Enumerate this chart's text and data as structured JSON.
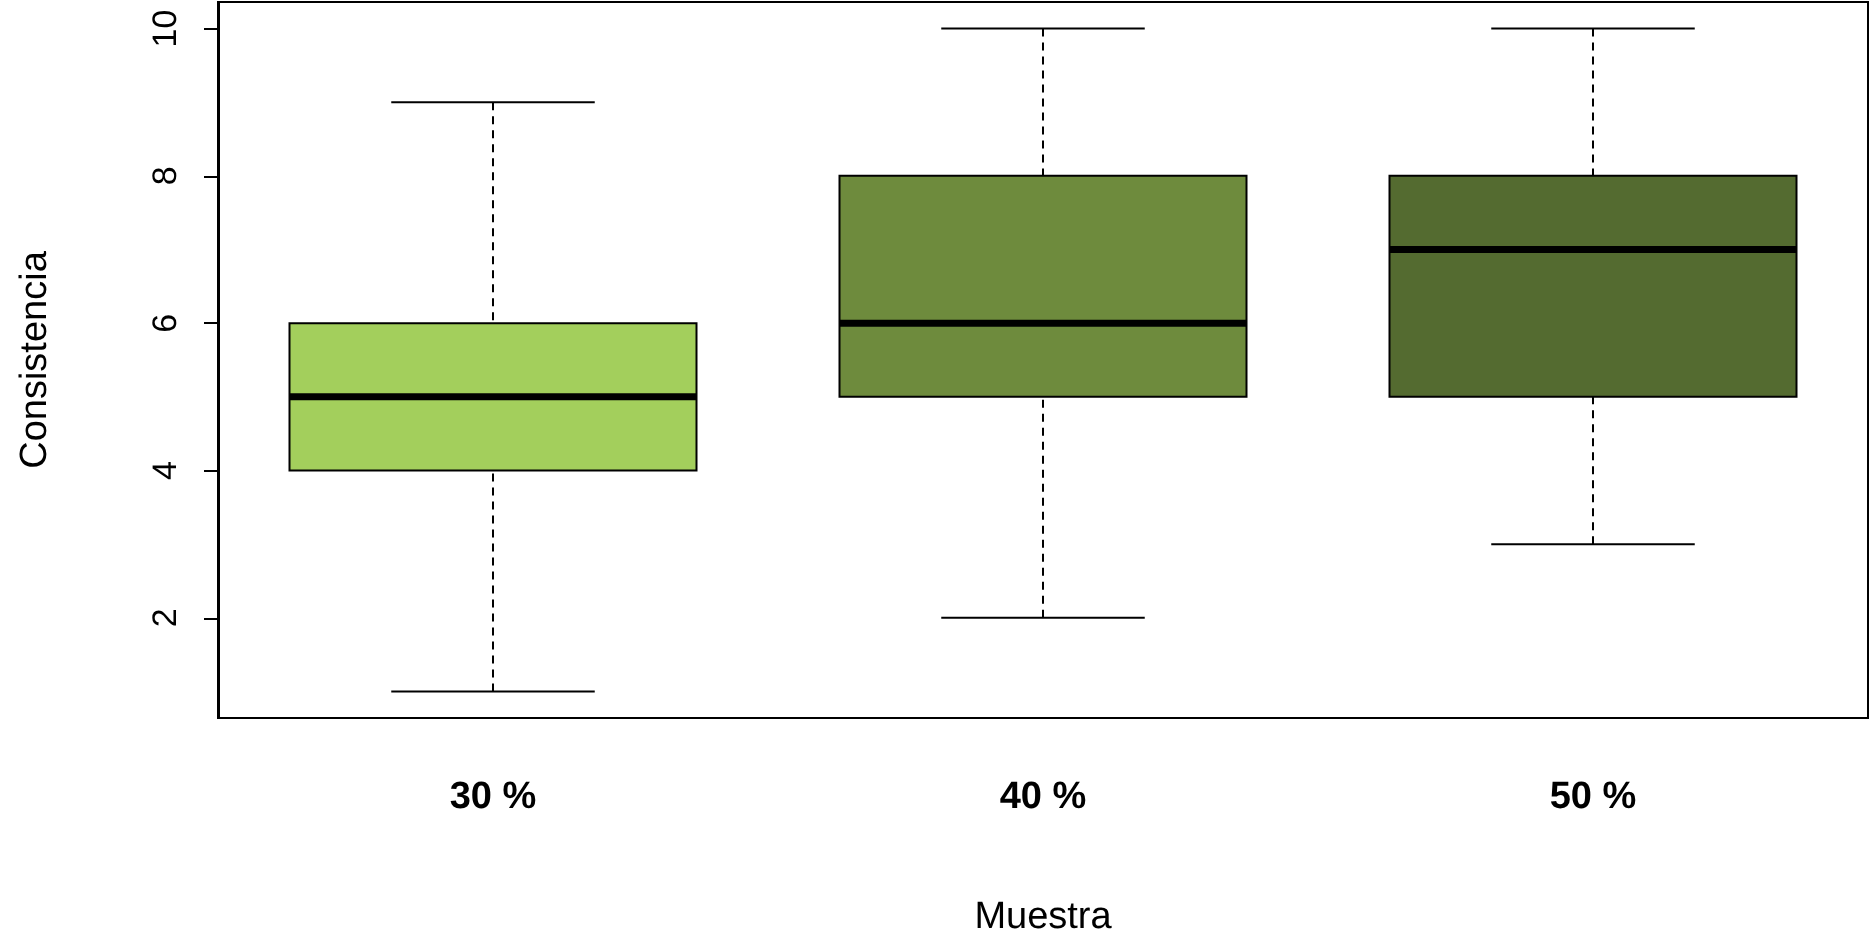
{
  "chart_data": {
    "type": "box",
    "xlabel": "Muestra",
    "ylabel": "Consistencia",
    "categories": [
      "30 %",
      "40 %",
      "50 %"
    ],
    "colors": [
      "#a3cf5c",
      "#6e8b3d",
      "#546b30"
    ],
    "boxes": [
      {
        "low": 1,
        "q1": 4,
        "median": 5,
        "q3": 6,
        "high": 9
      },
      {
        "low": 2,
        "q1": 5,
        "median": 6,
        "q3": 8,
        "high": 10
      },
      {
        "low": 3,
        "q1": 5,
        "median": 7,
        "q3": 8,
        "high": 10
      }
    ],
    "ylim": [
      0.64,
      10.36
    ],
    "yticks": [
      2,
      4,
      6,
      8,
      10
    ],
    "grid": false
  }
}
